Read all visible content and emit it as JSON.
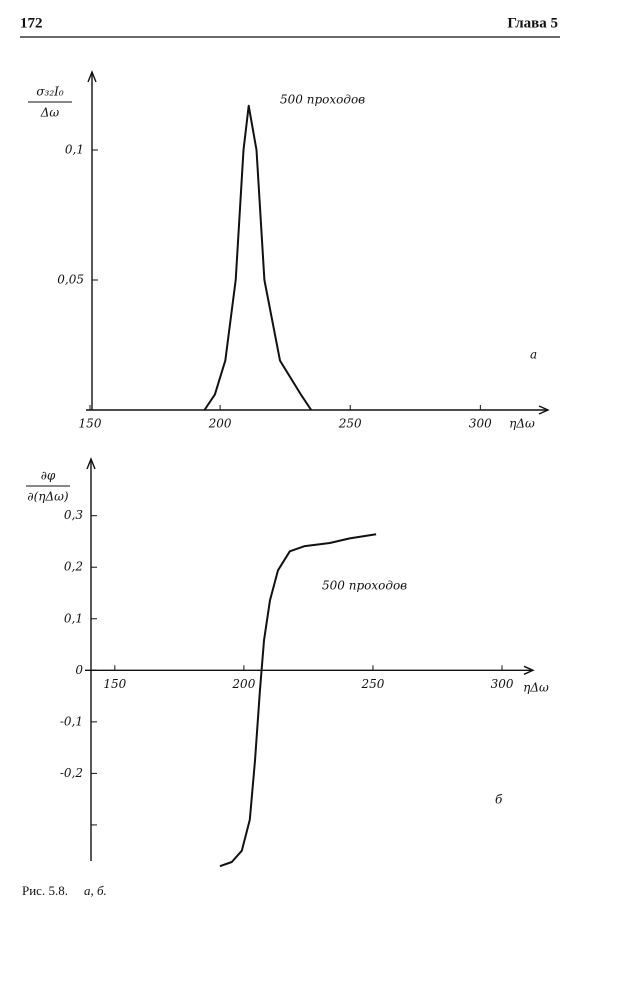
{
  "header": {
    "page_number": "172",
    "chapter": "Глава 5"
  },
  "chart_data": [
    {
      "type": "line",
      "panel": "а",
      "annotation": "500 проходов",
      "ylabel_numerator": "σ₃₂I₀",
      "ylabel_denominator": "Δω",
      "xlabel": "ηΔω",
      "xlim": [
        150,
        326
      ],
      "ylim": [
        0,
        0.13
      ],
      "xticks": [
        150,
        200,
        250,
        300
      ],
      "yticks": [
        {
          "value": 0.05,
          "label": "0,05"
        },
        {
          "value": 0.1,
          "label": "0,1"
        }
      ],
      "x": [
        194,
        198,
        202,
        206,
        209,
        211,
        214,
        217,
        223,
        231,
        235
      ],
      "series": [
        {
          "color": "#111111",
          "values": [
            0,
            0.006,
            0.019,
            0.05,
            0.1,
            0.117,
            0.1,
            0.05,
            0.019,
            0.006,
            0
          ]
        }
      ]
    },
    {
      "type": "line",
      "panel": "б",
      "annotation": "500 проходов",
      "ylabel_numerator": "∂φ",
      "ylabel_denominator": "∂(ηΔω)",
      "xlabel": "ηΔω",
      "xlim": [
        140,
        312
      ],
      "ylim": [
        -0.37,
        0.41
      ],
      "xticks": [
        150,
        200,
        250,
        300
      ],
      "yticks": [
        {
          "value": -0.3,
          "label": null
        },
        {
          "value": -0.2,
          "label": "-0,2"
        },
        {
          "value": -0.1,
          "label": "-0,1"
        },
        0,
        {
          "value": 0.1,
          "label": "0,1"
        },
        {
          "value": 0.2,
          "label": "0,2"
        },
        {
          "value": 0.3,
          "label": "0,3"
        }
      ],
      "x": [
        190.7,
        195.3,
        199.2,
        202.3,
        204.3,
        206.2,
        207.8,
        210.1,
        213.2,
        217.8,
        223.6,
        233.3,
        241,
        251.2
      ],
      "series": [
        {
          "color": "#111111",
          "values": [
            -0.38,
            -0.372,
            -0.35,
            -0.29,
            -0.175,
            -0.04,
            0.058,
            0.136,
            0.194,
            0.231,
            0.241,
            0.247,
            0.256,
            0.264
          ]
        }
      ]
    }
  ],
  "caption": {
    "label": "Рис. 5.8.",
    "panels": "а, б."
  }
}
